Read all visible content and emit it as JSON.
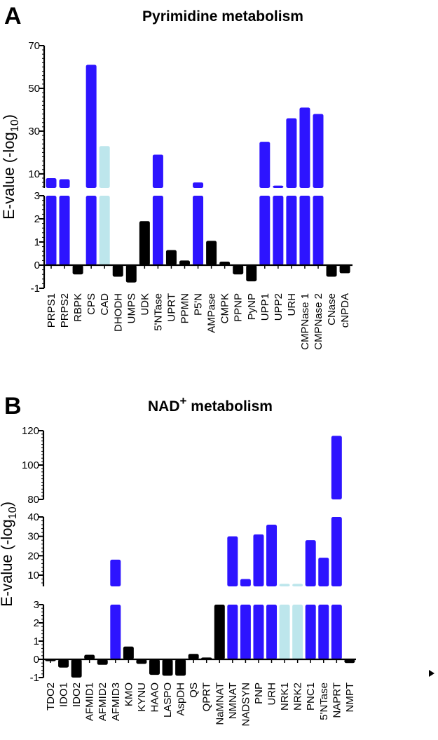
{
  "colors": {
    "blue": "#2d14ff",
    "light": "#bde6ec",
    "black": "#000000",
    "axis": "#000000"
  },
  "chart_data": [
    {
      "type": "bar",
      "panel": "A",
      "title": "Pyrimidine metabolism",
      "title_parts": {
        "main": "Pyrimidine metabolism",
        "sup": "",
        "rest": ""
      },
      "ylabel": {
        "text": "E-value (-log",
        "sub": "10",
        "end": ")"
      },
      "xlabel": "",
      "y_segments": [
        {
          "range": [
            -1,
            3
          ],
          "ticks": [
            -1,
            0,
            1,
            2,
            3
          ]
        },
        {
          "range": [
            3.4,
            70
          ],
          "ticks": [
            10,
            30,
            50,
            70
          ]
        }
      ],
      "categories": [
        "PRPS1",
        "PRPS2",
        "RBPK",
        "CPS",
        "CAD",
        "DHODH",
        "UMPS",
        "UDK",
        "5'NTase",
        "UPRT",
        "PPMN",
        "P5'N",
        "AMPase",
        "CMPK",
        "PPNP",
        "PyNP",
        "UPP1",
        "UPP2",
        "URH",
        "CMPNase 1",
        "CMPNase 2",
        "CNase",
        "cNPDA"
      ],
      "values": [
        8,
        7.5,
        -0.4,
        61,
        23,
        -0.5,
        -0.75,
        1.9,
        19,
        0.65,
        0.2,
        6,
        1.05,
        0.15,
        -0.4,
        -0.7,
        25,
        4.5,
        36,
        41,
        38,
        -0.5,
        -0.35
      ],
      "color_groups": [
        "blue",
        "blue",
        "black",
        "blue",
        "light",
        "black",
        "black",
        "black",
        "blue",
        "black",
        "black",
        "blue",
        "black",
        "black",
        "black",
        "black",
        "blue",
        "blue",
        "blue",
        "blue",
        "blue",
        "black",
        "black"
      ]
    },
    {
      "type": "bar",
      "panel": "B",
      "title": "NAD+ metabolism",
      "title_parts": {
        "main": "NAD",
        "sup": "+",
        "rest": " metabolism"
      },
      "ylabel": {
        "text": "E-value (-log",
        "sub": "10",
        "end": ")"
      },
      "xlabel": "",
      "y_segments": [
        {
          "range": [
            -1,
            3
          ],
          "ticks": [
            -1,
            0,
            1,
            2,
            3
          ]
        },
        {
          "range": [
            4.2,
            40
          ],
          "ticks": [
            10,
            20,
            30,
            40
          ]
        },
        {
          "range": [
            80,
            120
          ],
          "ticks": [
            80,
            100,
            120
          ]
        }
      ],
      "categories": [
        "TDO2",
        "IDO1",
        "IDO2",
        "AFMID1",
        "AFMID2",
        "AFMID3",
        "KMO",
        "KYNU",
        "HAAO",
        "LASPO",
        "AspDH",
        "QS",
        "QPRT",
        "NaMNAT",
        "NMNAT",
        "NADSYN",
        "PNP",
        "URH",
        "NRK1",
        "NRK2",
        "PNC1",
        "5'NTase",
        "NAPRT",
        "NMPT"
      ],
      "values": [
        -0.1,
        -0.45,
        -1.0,
        0.25,
        -0.3,
        18,
        0.7,
        -0.25,
        -0.85,
        -0.9,
        -0.9,
        0.3,
        0.1,
        3.0,
        30,
        8,
        31,
        36,
        5.5,
        5.5,
        28,
        19,
        117,
        -0.2
      ],
      "color_groups": [
        "black",
        "black",
        "black",
        "black",
        "black",
        "blue",
        "black",
        "black",
        "black",
        "black",
        "black",
        "black",
        "black",
        "black",
        "blue",
        "blue",
        "blue",
        "blue",
        "light",
        "light",
        "blue",
        "blue",
        "blue",
        "black"
      ]
    }
  ]
}
